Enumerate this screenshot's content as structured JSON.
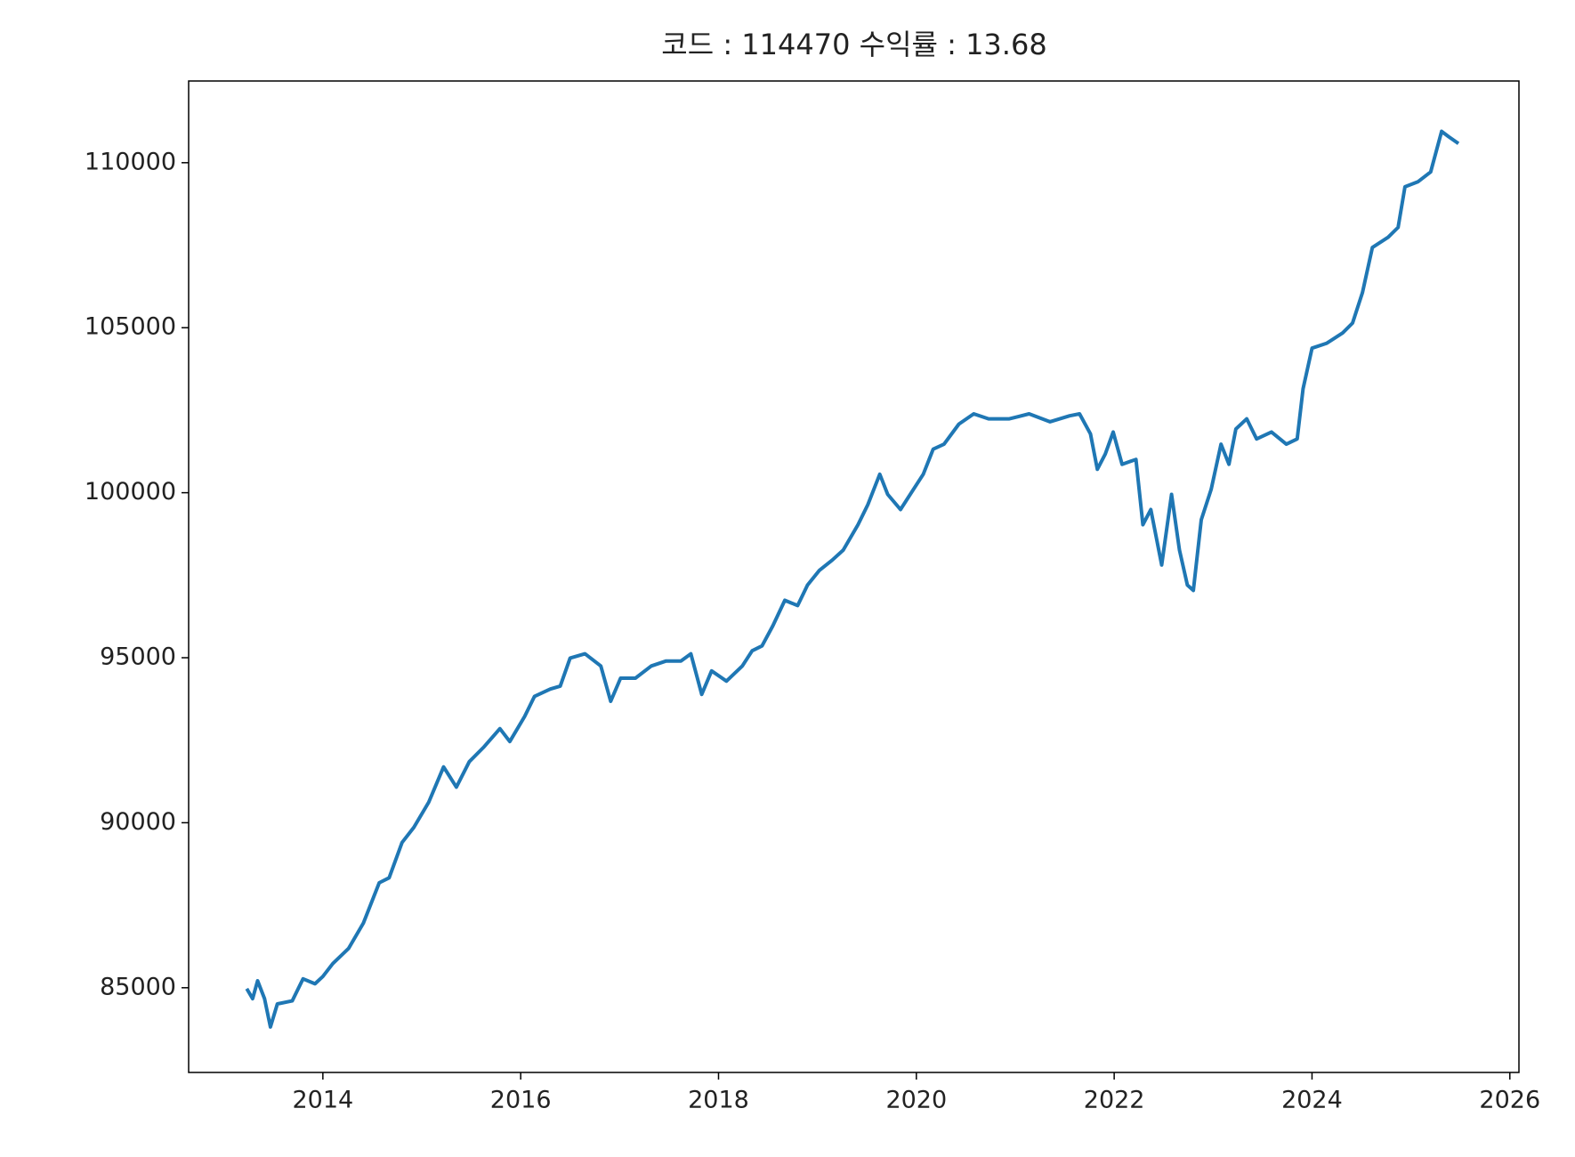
{
  "chart_data": {
    "type": "line",
    "title": "코드 : 114470 수익률 : 13.68",
    "x": [
      2013.23,
      2013.29,
      2013.34,
      2013.41,
      2013.47,
      2013.54,
      2013.69,
      2013.8,
      2013.92,
      2014.0,
      2014.1,
      2014.26,
      2014.41,
      2014.57,
      2014.67,
      2014.8,
      2014.92,
      2015.07,
      2015.22,
      2015.35,
      2015.48,
      2015.63,
      2015.79,
      2015.89,
      2016.04,
      2016.14,
      2016.3,
      2016.4,
      2016.5,
      2016.65,
      2016.81,
      2016.91,
      2017.01,
      2017.16,
      2017.32,
      2017.47,
      2017.62,
      2017.72,
      2017.83,
      2017.93,
      2018.08,
      2018.24,
      2018.34,
      2018.44,
      2018.55,
      2018.67,
      2018.8,
      2018.9,
      2019.02,
      2019.15,
      2019.26,
      2019.41,
      2019.51,
      2019.63,
      2019.71,
      2019.84,
      2019.97,
      2020.07,
      2020.17,
      2020.28,
      2020.43,
      2020.58,
      2020.73,
      2020.94,
      2021.14,
      2021.35,
      2021.55,
      2021.65,
      2021.76,
      2021.83,
      2021.91,
      2021.99,
      2022.08,
      2022.22,
      2022.29,
      2022.37,
      2022.48,
      2022.58,
      2022.66,
      2022.74,
      2022.8,
      2022.88,
      2022.98,
      2023.08,
      2023.16,
      2023.23,
      2023.34,
      2023.44,
      2023.59,
      2023.74,
      2023.85,
      2023.91,
      2024.0,
      2024.15,
      2024.31,
      2024.41,
      2024.51,
      2024.61,
      2024.77,
      2024.87,
      2024.94,
      2025.07,
      2025.2,
      2025.31,
      2025.38,
      2025.48
    ],
    "series": [
      {
        "color": "#1f77b4",
        "values": [
          84970,
          84670,
          85210,
          84670,
          83810,
          84510,
          84600,
          85270,
          85120,
          85340,
          85730,
          86190,
          86960,
          88180,
          88330,
          89400,
          89860,
          90620,
          91690,
          91080,
          91850,
          92300,
          92850,
          92460,
          93220,
          93830,
          94050,
          94140,
          94990,
          95120,
          94750,
          93680,
          94380,
          94380,
          94750,
          94900,
          94900,
          95120,
          93890,
          94600,
          94290,
          94750,
          95210,
          95360,
          95970,
          96740,
          96580,
          97200,
          97650,
          97960,
          98260,
          99030,
          99640,
          100560,
          99950,
          99490,
          100100,
          100560,
          101320,
          101470,
          102080,
          102390,
          102240,
          102240,
          102390,
          102150,
          102330,
          102390,
          101780,
          100710,
          101170,
          101840,
          100860,
          101010,
          99030,
          99490,
          97810,
          99950,
          98260,
          97200,
          97040,
          99180,
          100100,
          101470,
          100860,
          101930,
          102240,
          101630,
          101840,
          101470,
          101630,
          103150,
          104380,
          104530,
          104840,
          105140,
          106060,
          107430,
          107740,
          108040,
          109270,
          109420,
          109720,
          110950,
          110790,
          110580
        ]
      }
    ],
    "xlim": [
      2012.643,
      2026.092
    ],
    "xticks": [
      2014,
      2016,
      2018,
      2020,
      2022,
      2024,
      2026
    ],
    "ylim": [
      82433,
      112476
    ],
    "yticks": [
      85000,
      90000,
      95000,
      100000,
      105000,
      110000
    ]
  }
}
